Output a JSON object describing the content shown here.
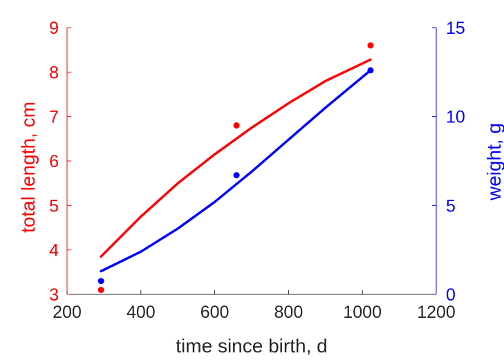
{
  "chart_data": {
    "type": "line",
    "xlabel": "time since birth, d",
    "ylabel_left": "total length, cm",
    "ylabel_right": "weight, g",
    "xlim": [
      200,
      1200
    ],
    "ylim_left": [
      3,
      9
    ],
    "ylim_right": [
      0,
      15
    ],
    "xticks": [
      200,
      400,
      600,
      800,
      1000,
      1200
    ],
    "yticks_left": [
      3,
      4,
      5,
      6,
      7,
      8,
      9
    ],
    "yticks_right": [
      0,
      5,
      10,
      15
    ],
    "grid": false,
    "colors": {
      "left": "#ff0000",
      "right": "#0000ff"
    },
    "series": [
      {
        "axis": "left",
        "color": "#ff0000",
        "points": [
          {
            "x": 292,
            "y": 3.1
          },
          {
            "x": 659,
            "y": 6.8
          },
          {
            "x": 1022,
            "y": 8.6
          }
        ],
        "curve": [
          {
            "x": 292,
            "y": 3.85
          },
          {
            "x": 400,
            "y": 4.75
          },
          {
            "x": 500,
            "y": 5.5
          },
          {
            "x": 600,
            "y": 6.15
          },
          {
            "x": 700,
            "y": 6.75
          },
          {
            "x": 800,
            "y": 7.3
          },
          {
            "x": 900,
            "y": 7.8
          },
          {
            "x": 1022,
            "y": 8.28
          }
        ]
      },
      {
        "axis": "right",
        "color": "#0000ff",
        "points": [
          {
            "x": 292,
            "y": 0.75
          },
          {
            "x": 659,
            "y": 6.7
          },
          {
            "x": 1022,
            "y": 12.6
          }
        ],
        "curve": [
          {
            "x": 292,
            "y": 1.3
          },
          {
            "x": 400,
            "y": 2.4
          },
          {
            "x": 500,
            "y": 3.7
          },
          {
            "x": 600,
            "y": 5.2
          },
          {
            "x": 700,
            "y": 6.9
          },
          {
            "x": 800,
            "y": 8.7
          },
          {
            "x": 900,
            "y": 10.5
          },
          {
            "x": 1022,
            "y": 12.6
          }
        ]
      }
    ]
  }
}
